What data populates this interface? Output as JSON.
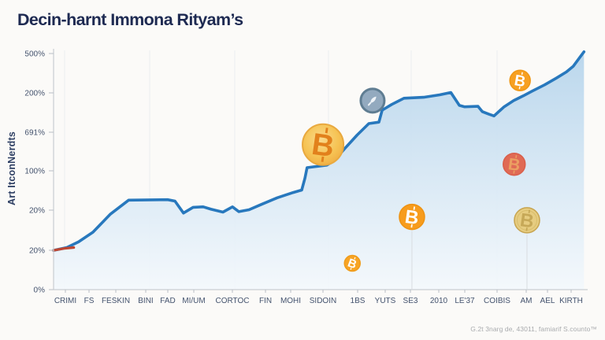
{
  "page": {
    "title": "Decin-harnt Immona Rityam’s",
    "footer_note": "G.2t 3narg de, 43011, famiarif S.counto™",
    "background": "#fbfaf8"
  },
  "chart_data": {
    "type": "area",
    "title": "Decin-harnt Immona Rityam’s",
    "ylabel": "Art ItconNerdts",
    "xlabel": "",
    "grid": "vertical-only",
    "legend": "none",
    "ylim_percent": [
      0,
      500
    ],
    "y_tick_labels": [
      "500%",
      "200%",
      "691%",
      "100%",
      "20%",
      "20%",
      "0%"
    ],
    "x_categories": [
      "CRIMI",
      "FS",
      "FESKIN",
      "BINI",
      "FAD",
      "MI/UM",
      "CORTOC",
      "FIN",
      "MOHI",
      "SIDOIN",
      "1BS",
      "YUTS",
      "SE3",
      "2010",
      "LE'37",
      "COIBIS",
      "AM",
      "AEL",
      "KIRTH"
    ],
    "series": [
      {
        "name": "crypto-growth-index",
        "color": "#2878bd",
        "values_percent": [
          88,
          115,
          170,
          187,
          188,
          172,
          170,
          182,
          202,
          259,
          325,
          378,
          400,
          407,
          382,
          368,
          410,
          432,
          463
        ],
        "end_value_percent": 497
      }
    ],
    "sampled_curve": [
      [
        0,
        82
      ],
      [
        0.025,
        88
      ],
      [
        0.047,
        100
      ],
      [
        0.074,
        120
      ],
      [
        0.107,
        158
      ],
      [
        0.141,
        187
      ],
      [
        0.214,
        188
      ],
      [
        0.228,
        185
      ],
      [
        0.244,
        160
      ],
      [
        0.262,
        172
      ],
      [
        0.281,
        173
      ],
      [
        0.296,
        168
      ],
      [
        0.318,
        162
      ],
      [
        0.336,
        173
      ],
      [
        0.348,
        163
      ],
      [
        0.367,
        167
      ],
      [
        0.39,
        178
      ],
      [
        0.42,
        192
      ],
      [
        0.45,
        203
      ],
      [
        0.466,
        208
      ],
      [
        0.472,
        233
      ],
      [
        0.476,
        255
      ],
      [
        0.513,
        260
      ],
      [
        0.527,
        270
      ],
      [
        0.547,
        295
      ],
      [
        0.57,
        323
      ],
      [
        0.592,
        347
      ],
      [
        0.611,
        350
      ],
      [
        0.617,
        375
      ],
      [
        0.635,
        387
      ],
      [
        0.658,
        400
      ],
      [
        0.695,
        402
      ],
      [
        0.725,
        407
      ],
      [
        0.746,
        412
      ],
      [
        0.762,
        385
      ],
      [
        0.772,
        382
      ],
      [
        0.797,
        383
      ],
      [
        0.805,
        372
      ],
      [
        0.817,
        367
      ],
      [
        0.827,
        363
      ],
      [
        0.846,
        382
      ],
      [
        0.864,
        395
      ],
      [
        0.882,
        405
      ],
      [
        0.899,
        415
      ],
      [
        0.922,
        428
      ],
      [
        0.944,
        442
      ],
      [
        0.963,
        455
      ],
      [
        0.976,
        467
      ],
      [
        0.988,
        485
      ],
      [
        0.996,
        497
      ]
    ],
    "start_segment": {
      "color": "#bf4631",
      "points": [
        [
          0,
          82
        ],
        [
          0.02,
          86
        ],
        [
          0.038,
          88
        ]
      ]
    },
    "area_fill": {
      "top": "#b7d5ec",
      "bottom": "#f3f8fc"
    },
    "line_color": "#2878bd",
    "axis_color": "#c9cdd2",
    "grid_color": "#ebeef1",
    "coins": [
      {
        "name": "bitcoin-coin-large",
        "glyph": "bitcoin",
        "x": 0.506,
        "value": 303,
        "r": 26,
        "tilt": 8,
        "fill": "#f6c455",
        "fill2": "#efa63c",
        "ring": "#e9a93f",
        "glyph_color": "#e2811c"
      },
      {
        "name": "rocket-coin",
        "glyph": "rocket",
        "x": 0.599,
        "value": 395,
        "r": 15,
        "tilt": 42,
        "fill": "#93aabf",
        "ring": "#5f7d92",
        "glyph_color": "#eef3f7"
      },
      {
        "name": "bitcoin-coin-top-right",
        "glyph": "bitcoin",
        "x": 0.876,
        "value": 437,
        "r": 13,
        "tilt": 10,
        "fill": "#f7a021",
        "ring": "#ef9714",
        "glyph_color": "#ffffff"
      },
      {
        "name": "red-coin",
        "glyph": "bitcoin",
        "x": 0.865,
        "value": 262,
        "r": 14,
        "tilt": 8,
        "fill": "#e06a55",
        "ring": "#d95f4b",
        "glyph_color": "#eda964",
        "glyph_opacity": 0.85
      },
      {
        "name": "bitcoin-coin-mid",
        "glyph": "bitcoin",
        "x": 0.673,
        "value": 152,
        "r": 16,
        "tilt": 8,
        "fill": "#f79c1d",
        "ring": "#ee9212",
        "glyph_color": "#ffffff",
        "stem": true
      },
      {
        "name": "gold-coin",
        "glyph": "bitcoin",
        "x": 0.889,
        "value": 145,
        "r": 16,
        "tilt": 0,
        "fill": "#e6cc80",
        "ring": "#c7a44f",
        "glyph_color": "#bfa04e",
        "glyph_opacity": 0.8,
        "inner_ring": "#d8bd6b",
        "stem": true
      },
      {
        "name": "bitcoin-coin-small",
        "glyph": "bitcoin",
        "x": 0.561,
        "value": 55,
        "r": 10,
        "tilt": 20,
        "fill": "#f7a425",
        "ring": "#ef9b1a",
        "glyph_color": "#ffffff"
      }
    ]
  }
}
